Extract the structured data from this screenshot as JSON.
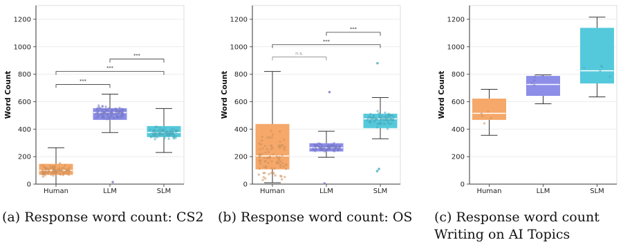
{
  "chart_data": [
    {
      "type": "box",
      "ylabel": "Word Count",
      "ylim": [
        0,
        1300
      ],
      "yticks": [
        0,
        200,
        400,
        600,
        800,
        1000,
        1200
      ],
      "categories": [
        "Human",
        "LLM",
        "SLM"
      ],
      "colors": [
        "#f5a86a",
        "#8c8ee8",
        "#55c9dc"
      ],
      "boxes": [
        {
          "whislo": 0,
          "q1": 70,
          "med": 100,
          "q3": 145,
          "whishi": 265,
          "fliers": [],
          "n_points": 90
        },
        {
          "whislo": 375,
          "q1": 470,
          "med": 520,
          "q3": 550,
          "whishi": 655,
          "fliers": [
            15
          ],
          "n_points": 90
        },
        {
          "whislo": 230,
          "q1": 345,
          "med": 375,
          "q3": 420,
          "whishi": 550,
          "fliers": [],
          "n_points": 90
        }
      ],
      "significance": [
        {
          "from": "Human",
          "to": "LLM",
          "label": "***",
          "y": 725
        },
        {
          "from": "Human",
          "to": "SLM",
          "label": "***",
          "y": 820
        },
        {
          "from": "LLM",
          "to": "SLM",
          "label": "***",
          "y": 910
        }
      ]
    },
    {
      "type": "box",
      "ylabel": "Word Count",
      "ylim": [
        0,
        1300
      ],
      "yticks": [
        0,
        200,
        400,
        600,
        800,
        1000,
        1200
      ],
      "categories": [
        "Human",
        "LLM",
        "SLM"
      ],
      "colors": [
        "#f5a86a",
        "#8c8ee8",
        "#55c9dc"
      ],
      "boxes": [
        {
          "whislo": 10,
          "q1": 110,
          "med": 205,
          "q3": 435,
          "whishi": 820,
          "fliers": [],
          "n_points": 90
        },
        {
          "whislo": 195,
          "q1": 240,
          "med": 265,
          "q3": 295,
          "whishi": 385,
          "fliers": [
            670,
            5
          ],
          "n_points": 70
        },
        {
          "whislo": 330,
          "q1": 410,
          "med": 475,
          "q3": 510,
          "whishi": 630,
          "fliers": [
            880,
            110,
            95
          ],
          "n_points": 70
        }
      ],
      "significance": [
        {
          "from": "Human",
          "to": "LLM",
          "label": "n.s.",
          "y": 925
        },
        {
          "from": "Human",
          "to": "SLM",
          "label": "***",
          "y": 1015
        },
        {
          "from": "LLM",
          "to": "SLM",
          "label": "***",
          "y": 1105
        }
      ]
    },
    {
      "type": "box",
      "ylabel": "Word Count",
      "ylim": [
        0,
        1300
      ],
      "yticks": [
        0,
        200,
        400,
        600,
        800,
        1000,
        1200
      ],
      "categories": [
        "Human",
        "LLM",
        "SLM"
      ],
      "colors": [
        "#f5a86a",
        "#8c8ee8",
        "#55c9dc"
      ],
      "boxes": [
        {
          "whislo": 355,
          "q1": 470,
          "med": 515,
          "q3": 620,
          "whishi": 690,
          "fliers": [],
          "n_points": 5
        },
        {
          "whislo": 585,
          "q1": 645,
          "med": 725,
          "q3": 785,
          "whishi": 795,
          "fliers": [],
          "n_points": 5
        },
        {
          "whislo": 635,
          "q1": 735,
          "med": 825,
          "q3": 1135,
          "whishi": 1215,
          "fliers": [],
          "n_points": 5
        }
      ],
      "significance": []
    }
  ],
  "captions": [
    "(a) Response word count: CS2",
    "(b) Response word count: OS",
    "(c) Response word count Writing on AI Topics"
  ]
}
